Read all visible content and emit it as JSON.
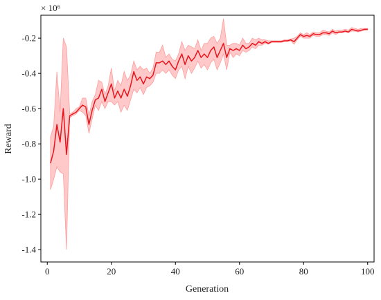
{
  "chart_data": {
    "type": "line",
    "title": "",
    "xlabel": "Generation",
    "ylabel": "Reward",
    "y_scale_note": "× 10⁶",
    "xlim": [
      -2,
      102
    ],
    "ylim": [
      -1.47,
      -0.07
    ],
    "x_ticks": [
      0,
      20,
      40,
      60,
      80,
      100
    ],
    "y_ticks": [
      -1.4,
      -1.2,
      -1.0,
      -0.8,
      -0.6,
      -0.4,
      -0.2
    ],
    "x_tick_labels": [
      "0",
      "20",
      "40",
      "60",
      "80",
      "100"
    ],
    "y_tick_labels": [
      "-1.4",
      "-1.2",
      "-1.0",
      "-0.8",
      "-0.6",
      "-0.4",
      "-0.2"
    ],
    "grid": false,
    "legend": "none",
    "series": [
      {
        "color": "#e8141c",
        "band_color": "#ff9c9c",
        "x": [
          1,
          2,
          3,
          4,
          5,
          6,
          7,
          8,
          9,
          10,
          11,
          12,
          13,
          14,
          15,
          16,
          17,
          18,
          19,
          20,
          21,
          22,
          23,
          24,
          25,
          26,
          27,
          28,
          29,
          30,
          31,
          32,
          33,
          34,
          35,
          36,
          37,
          38,
          39,
          40,
          41,
          42,
          43,
          44,
          45,
          46,
          47,
          48,
          49,
          50,
          51,
          52,
          53,
          54,
          55,
          56,
          57,
          58,
          59,
          60,
          61,
          62,
          63,
          64,
          65,
          66,
          67,
          68,
          69,
          70,
          71,
          72,
          73,
          74,
          75,
          76,
          77,
          78,
          79,
          80,
          81,
          82,
          83,
          84,
          85,
          86,
          87,
          88,
          89,
          90,
          91,
          92,
          93,
          94,
          95,
          96,
          97,
          98,
          99,
          100
        ],
        "mean": [
          -0.91,
          -0.84,
          -0.69,
          -0.79,
          -0.6,
          -0.86,
          -0.64,
          -0.63,
          -0.62,
          -0.6,
          -0.58,
          -0.59,
          -0.69,
          -0.61,
          -0.55,
          -0.54,
          -0.49,
          -0.56,
          -0.51,
          -0.46,
          -0.54,
          -0.5,
          -0.54,
          -0.49,
          -0.53,
          -0.47,
          -0.39,
          -0.44,
          -0.42,
          -0.46,
          -0.42,
          -0.43,
          -0.41,
          -0.34,
          -0.34,
          -0.33,
          -0.35,
          -0.33,
          -0.36,
          -0.38,
          -0.33,
          -0.29,
          -0.35,
          -0.3,
          -0.33,
          -0.31,
          -0.27,
          -0.31,
          -0.29,
          -0.31,
          -0.27,
          -0.25,
          -0.31,
          -0.27,
          -0.23,
          -0.31,
          -0.26,
          -0.27,
          -0.26,
          -0.27,
          -0.24,
          -0.26,
          -0.25,
          -0.23,
          -0.24,
          -0.22,
          -0.23,
          -0.22,
          -0.23,
          -0.22,
          -0.22,
          -0.22,
          -0.22,
          -0.215,
          -0.215,
          -0.21,
          -0.22,
          -0.2,
          -0.18,
          -0.19,
          -0.185,
          -0.19,
          -0.175,
          -0.18,
          -0.18,
          -0.17,
          -0.17,
          -0.175,
          -0.16,
          -0.17,
          -0.165,
          -0.165,
          -0.16,
          -0.165,
          -0.15,
          -0.155,
          -0.16,
          -0.155,
          -0.15,
          -0.15
        ],
        "lower": [
          -1.06,
          -1.0,
          -0.93,
          -0.96,
          -0.97,
          -1.4,
          -0.65,
          -0.64,
          -0.63,
          -0.61,
          -0.62,
          -0.64,
          -0.74,
          -0.66,
          -0.58,
          -0.61,
          -0.56,
          -0.6,
          -0.56,
          -0.56,
          -0.58,
          -0.56,
          -0.62,
          -0.58,
          -0.61,
          -0.55,
          -0.49,
          -0.51,
          -0.48,
          -0.52,
          -0.48,
          -0.47,
          -0.45,
          -0.4,
          -0.4,
          -0.38,
          -0.4,
          -0.38,
          -0.41,
          -0.43,
          -0.38,
          -0.36,
          -0.43,
          -0.36,
          -0.4,
          -0.37,
          -0.33,
          -0.37,
          -0.35,
          -0.38,
          -0.34,
          -0.32,
          -0.38,
          -0.34,
          -0.29,
          -0.38,
          -0.28,
          -0.31,
          -0.29,
          -0.3,
          -0.27,
          -0.28,
          -0.27,
          -0.25,
          -0.26,
          -0.24,
          -0.24,
          -0.23,
          -0.235,
          -0.225,
          -0.225,
          -0.225,
          -0.225,
          -0.22,
          -0.22,
          -0.215,
          -0.235,
          -0.21,
          -0.19,
          -0.2,
          -0.2,
          -0.2,
          -0.185,
          -0.19,
          -0.19,
          -0.18,
          -0.18,
          -0.185,
          -0.17,
          -0.18,
          -0.17,
          -0.17,
          -0.165,
          -0.17,
          -0.16,
          -0.16,
          -0.165,
          -0.16,
          -0.155,
          -0.155
        ],
        "upper": [
          -0.76,
          -0.7,
          -0.39,
          -0.62,
          -0.2,
          -0.25,
          -0.63,
          -0.62,
          -0.6,
          -0.59,
          -0.54,
          -0.54,
          -0.64,
          -0.56,
          -0.52,
          -0.44,
          -0.45,
          -0.52,
          -0.47,
          -0.37,
          -0.5,
          -0.44,
          -0.47,
          -0.39,
          -0.44,
          -0.41,
          -0.33,
          -0.38,
          -0.36,
          -0.38,
          -0.37,
          -0.4,
          -0.37,
          -0.28,
          -0.28,
          -0.24,
          -0.31,
          -0.29,
          -0.32,
          -0.33,
          -0.29,
          -0.22,
          -0.27,
          -0.24,
          -0.25,
          -0.26,
          -0.21,
          -0.27,
          -0.23,
          -0.23,
          -0.2,
          -0.19,
          -0.23,
          -0.2,
          -0.09,
          -0.24,
          -0.24,
          -0.23,
          -0.23,
          -0.24,
          -0.2,
          -0.23,
          -0.23,
          -0.2,
          -0.21,
          -0.2,
          -0.21,
          -0.21,
          -0.215,
          -0.215,
          -0.215,
          -0.215,
          -0.215,
          -0.21,
          -0.21,
          -0.205,
          -0.2,
          -0.19,
          -0.17,
          -0.18,
          -0.17,
          -0.18,
          -0.165,
          -0.17,
          -0.17,
          -0.155,
          -0.16,
          -0.165,
          -0.15,
          -0.16,
          -0.155,
          -0.155,
          -0.15,
          -0.155,
          -0.14,
          -0.145,
          -0.15,
          -0.145,
          -0.145,
          -0.145
        ]
      }
    ]
  }
}
